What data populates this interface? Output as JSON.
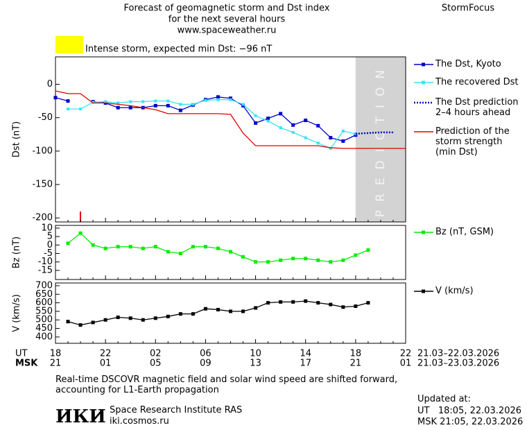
{
  "header": {
    "title": "Forecast of geomagnetic storm and Dst index",
    "subtitle": "for the next several hours",
    "url": "www.spaceweather.ru",
    "brand": "StormFocus"
  },
  "chart_data": [
    {
      "type": "line",
      "ylabel": "Dst (nT)",
      "annotation": "Intense storm, expected min Dst: −96 nT",
      "annotation_color": "#ffff00",
      "prediction_span": [
        24,
        28
      ],
      "prediction_label": "PREDICTION",
      "prediction_color": "#d3d3d3",
      "x": [
        0,
        1,
        2,
        3,
        4,
        5,
        6,
        7,
        8,
        9,
        10,
        11,
        12,
        13,
        14,
        15,
        16,
        17,
        18,
        19,
        20,
        21,
        22,
        23,
        24,
        25,
        26,
        27,
        28
      ],
      "xlim": [
        0,
        28
      ],
      "ylim": [
        -206,
        41
      ],
      "yticks": [
        -200,
        -150,
        -100,
        -50,
        0
      ],
      "series": [
        {
          "name": "The Dst, Kyoto",
          "color": "#0000cc",
          "marker": "square",
          "values": [
            -20,
            -25,
            null,
            -26,
            -28,
            -35,
            -35,
            -35,
            -32,
            -32,
            -39,
            -31,
            -23,
            -19,
            -21,
            -32,
            -58,
            -51,
            -44,
            -61,
            -54,
            -62,
            -80,
            -85,
            -76,
            null,
            null,
            null,
            null
          ]
        },
        {
          "name": "The recovered Dst",
          "color": "#33e6f0",
          "marker": "square",
          "values": [
            null,
            -37,
            -37,
            -27,
            -26,
            -28,
            -26,
            -26,
            -25,
            -25,
            -30,
            -30,
            -24,
            -23,
            -23,
            -30,
            -47,
            -55,
            -65,
            -72,
            -80,
            -88,
            -96,
            -70,
            -74,
            null,
            null,
            null,
            null
          ]
        },
        {
          "name": "The Dst prediction 2–4 hours ahead",
          "color": "#0000cc",
          "style": "dotted",
          "values": [
            null,
            null,
            null,
            null,
            null,
            null,
            null,
            null,
            null,
            null,
            null,
            null,
            null,
            null,
            null,
            null,
            null,
            null,
            null,
            null,
            null,
            null,
            null,
            null,
            -74,
            -73,
            -72,
            -72,
            null
          ]
        },
        {
          "name": "Prediction of the storm strength (min Dst)",
          "color": "#dd0000",
          "values": [
            -10,
            -14,
            -14,
            -28,
            -28,
            -30,
            -32,
            -35,
            -38,
            -44,
            -44,
            -44,
            -44,
            -44,
            -45,
            -73,
            -92,
            -92,
            -92,
            -92,
            -92,
            -92,
            -95,
            -96,
            -96,
            -96,
            -96,
            -96,
            -96
          ]
        }
      ]
    },
    {
      "type": "line",
      "ylabel": "Bz (nT)",
      "x": [
        0,
        1,
        2,
        3,
        4,
        5,
        6,
        7,
        8,
        9,
        10,
        11,
        12,
        13,
        14,
        15,
        16,
        17,
        18,
        19,
        20,
        21,
        22,
        23,
        24,
        25,
        26,
        27,
        28
      ],
      "xlim": [
        0,
        28
      ],
      "ylim": [
        -20.4,
        11.6
      ],
      "yticks": [
        -15,
        -10,
        -5,
        0,
        5,
        10
      ],
      "series": [
        {
          "name": "Bz (nT, GSM)",
          "color": "#00ee00",
          "marker": "square",
          "values": [
            null,
            1,
            7,
            0,
            -2,
            -1,
            -1,
            -2,
            -1,
            -4,
            -5,
            -1,
            -1,
            -2,
            -4,
            -7,
            -10,
            -10,
            -9,
            -8,
            -8,
            -9,
            -10,
            -9,
            -6,
            -3,
            null,
            null,
            null
          ]
        }
      ]
    },
    {
      "type": "line",
      "ylabel": "V (km/s)",
      "x": [
        0,
        1,
        2,
        3,
        4,
        5,
        6,
        7,
        8,
        9,
        10,
        11,
        12,
        13,
        14,
        15,
        16,
        17,
        18,
        19,
        20,
        21,
        22,
        23,
        24,
        25,
        26,
        27,
        28
      ],
      "xlim": [
        0,
        28
      ],
      "ylim": [
        363,
        716
      ],
      "yticks": [
        400,
        450,
        500,
        550,
        600,
        650,
        700
      ],
      "xlabel": "UT",
      "x2label": "MSK",
      "ut_dates": "21.03–22.03.2026",
      "msk_dates": "21.03–23.03.2026",
      "xticks": [
        {
          "value": 0,
          "label": "18"
        },
        {
          "value": 4,
          "label": "22"
        },
        {
          "value": 8,
          "label": "02"
        },
        {
          "value": 12,
          "label": "06"
        },
        {
          "value": 16,
          "label": "10"
        },
        {
          "value": 20,
          "label": "14"
        },
        {
          "value": 24,
          "label": "18"
        },
        {
          "value": 28,
          "label": "22"
        }
      ],
      "x2ticks": [
        {
          "value": 0,
          "label": "21"
        },
        {
          "value": 4,
          "label": "01"
        },
        {
          "value": 8,
          "label": "05"
        },
        {
          "value": 12,
          "label": "09"
        },
        {
          "value": 16,
          "label": "13"
        },
        {
          "value": 20,
          "label": "17"
        },
        {
          "value": 24,
          "label": "21"
        },
        {
          "value": 28,
          "label": "01"
        }
      ],
      "series": [
        {
          "name": "V (km/s)",
          "color": "#000000",
          "marker": "square",
          "values": [
            null,
            490,
            470,
            485,
            500,
            515,
            510,
            500,
            510,
            520,
            535,
            535,
            565,
            560,
            550,
            550,
            570,
            600,
            605,
            605,
            610,
            600,
            590,
            575,
            580,
            600,
            null,
            null,
            null
          ]
        }
      ]
    }
  ],
  "footer": {
    "note": "Real-time DSCOVR magnetic field and solar wind speed are shifted forward, accounting for L1-Earth propagation",
    "logo": "ИКИ",
    "institute": "Space Research Institute RAS",
    "site": "iki.cosmos.ru",
    "updated": "Updated at:",
    "updated_ut": "UT   18:05, 22.03.2026",
    "updated_msk": "MSK 21:05, 22.03.2026"
  }
}
